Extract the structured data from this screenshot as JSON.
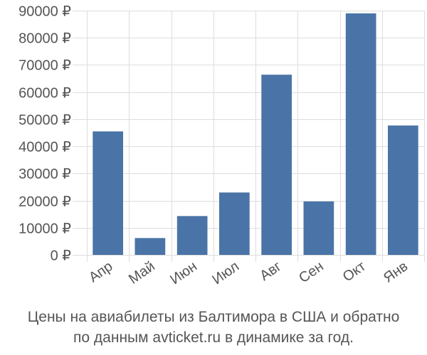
{
  "caption": {
    "line1": "Цены на авиабилеты из Балтимора в США и обратно",
    "line2": "по данным avticket.ru в динамике за год."
  },
  "chart_data": {
    "type": "bar",
    "categories": [
      "Апр",
      "Май",
      "Июн",
      "Июл",
      "Авг",
      "Сен",
      "Окт",
      "Янв"
    ],
    "values": [
      45500,
      6200,
      14300,
      23000,
      66400,
      19700,
      89000,
      47700
    ],
    "ylim": [
      0,
      90000
    ],
    "yticks": [
      0,
      10000,
      20000,
      30000,
      40000,
      50000,
      60000,
      70000,
      80000,
      90000
    ],
    "tick_suffix": " ₽",
    "grid": true,
    "bar_color": "#4a74a7",
    "grid_color": "#dddddd"
  }
}
